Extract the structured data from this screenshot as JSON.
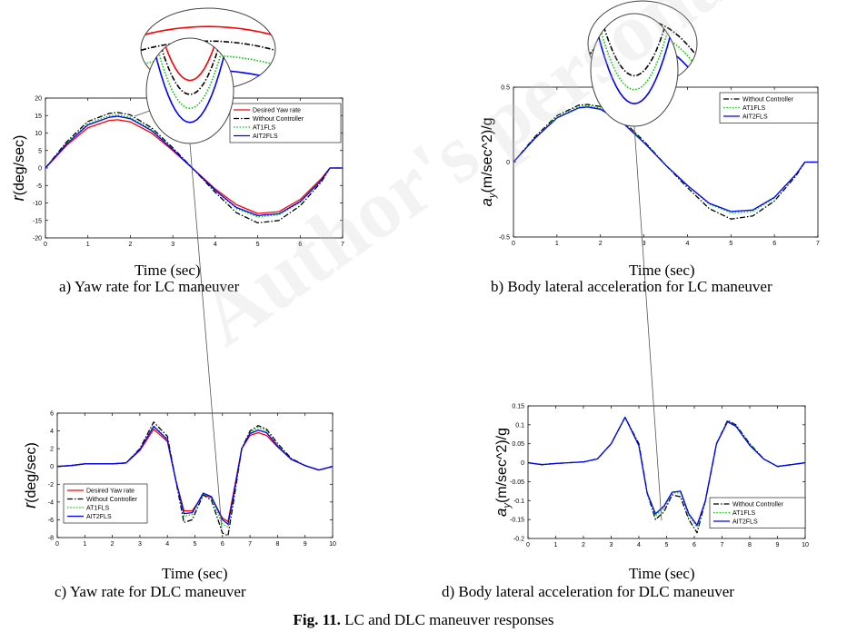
{
  "figure_caption": {
    "label": "Fig. 11.",
    "text": " LC and DLC maneuver responses"
  },
  "watermark": "Author's personal copy",
  "panels": {
    "a": {
      "caption": "a) Yaw rate for LC maneuver",
      "xlabel": "Time (sec)",
      "ylabel": "r(deg/sec)"
    },
    "b": {
      "caption": "b) Body lateral acceleration for LC maneuver",
      "xlabel": "Time (sec)",
      "ylabel": "a_y(m/sec^2)/g"
    },
    "c": {
      "caption": "c) Yaw rate for DLC maneuver",
      "xlabel": "Time (sec)",
      "ylabel": "r(deg/sec)"
    },
    "d": {
      "caption": "d) Body lateral acceleration for DLC maneuver",
      "xlabel": "Time (sec)",
      "ylabel": "a_y(m/sec^2)/g"
    }
  },
  "colors": {
    "desired": "#ff0000",
    "without": "#000000",
    "at1": "#00cc00",
    "ait2": "#0000ff"
  },
  "chart_data": [
    {
      "id": "a",
      "type": "line",
      "xlabel": "Time (sec)",
      "ylabel": "r(deg/sec)",
      "xlim": [
        0,
        7
      ],
      "ylim": [
        -20,
        20
      ],
      "xticks": [
        0,
        1,
        2,
        3,
        4,
        5,
        6,
        7
      ],
      "yticks": [
        20,
        15,
        10,
        5,
        0,
        -5,
        -10,
        -15,
        -20
      ],
      "legend": "top-right",
      "grid": false,
      "series": [
        {
          "name": "Desired Yaw rate",
          "color": "#ff0000",
          "style": "solid",
          "x": [
            0,
            0.5,
            1,
            1.5,
            1.7,
            2,
            2.5,
            3,
            3.5,
            4,
            4.5,
            5,
            5.5,
            6,
            6.5,
            6.7,
            7
          ],
          "y": [
            0,
            6.5,
            11.5,
            13.6,
            13.8,
            13.2,
            10,
            5,
            -0.5,
            -6,
            -10.5,
            -13,
            -12.5,
            -9,
            -3,
            0,
            0
          ]
        },
        {
          "name": "Without Controller",
          "color": "#000000",
          "style": "dashdot",
          "x": [
            0,
            0.5,
            1,
            1.5,
            1.7,
            2,
            2.5,
            3,
            3.5,
            4,
            4.5,
            5,
            5.5,
            6,
            6.5,
            6.7,
            7
          ],
          "y": [
            0,
            7.5,
            13.3,
            15.6,
            15.9,
            15.2,
            11.5,
            5.8,
            -0.5,
            -7,
            -12.8,
            -15.7,
            -15,
            -10.8,
            -4,
            0,
            0
          ]
        },
        {
          "name": "AT1FLS",
          "color": "#00cc00",
          "style": "dotted",
          "x": [
            0,
            0.5,
            1,
            1.5,
            1.7,
            2,
            2.5,
            3,
            3.5,
            4,
            4.5,
            5,
            5.5,
            6,
            6.5,
            6.7,
            7
          ],
          "y": [
            0,
            7.1,
            12.7,
            14.9,
            15.2,
            14.5,
            11,
            5.4,
            -0.5,
            -6.5,
            -11.6,
            -14,
            -13.4,
            -9.8,
            -3.6,
            0,
            0
          ]
        },
        {
          "name": "AIT2FLS",
          "color": "#0000ff",
          "style": "solid",
          "x": [
            0,
            0.5,
            1,
            1.5,
            1.7,
            2,
            2.5,
            3,
            3.5,
            4,
            4.5,
            5,
            5.5,
            6,
            6.5,
            6.7,
            7
          ],
          "y": [
            0,
            6.9,
            12.3,
            14.5,
            14.8,
            14.1,
            10.7,
            5.3,
            -0.5,
            -6.4,
            -11.3,
            -13.6,
            -13.1,
            -9.6,
            -3.5,
            0,
            0
          ]
        }
      ]
    },
    {
      "id": "b",
      "type": "line",
      "xlabel": "Time (sec)",
      "ylabel": "a_y(m/sec^2)/g",
      "xlim": [
        0,
        7
      ],
      "ylim": [
        -0.5,
        0.5
      ],
      "xticks": [
        0,
        1,
        2,
        3,
        4,
        5,
        6,
        7
      ],
      "yticks": [
        0.5,
        0,
        -0.5
      ],
      "legend": "top-right",
      "grid": false,
      "series": [
        {
          "name": "Without Controller",
          "color": "#000000",
          "style": "dashdot",
          "x": [
            0,
            0.5,
            1,
            1.5,
            1.7,
            2,
            2.5,
            3,
            3.5,
            4,
            4.5,
            5,
            5.5,
            6,
            6.5,
            6.7,
            7
          ],
          "y": [
            0,
            0.17,
            0.31,
            0.38,
            0.385,
            0.37,
            0.28,
            0.14,
            -0.02,
            -0.17,
            -0.31,
            -0.38,
            -0.36,
            -0.26,
            -0.09,
            0,
            0
          ]
        },
        {
          "name": "AT1FLS",
          "color": "#00cc00",
          "style": "dotted",
          "x": [
            0,
            0.5,
            1,
            1.5,
            1.7,
            2,
            2.5,
            3,
            3.5,
            4,
            4.5,
            5,
            5.5,
            6,
            6.5,
            6.7,
            7
          ],
          "y": [
            0,
            0.165,
            0.3,
            0.37,
            0.376,
            0.36,
            0.27,
            0.135,
            -0.02,
            -0.16,
            -0.28,
            -0.34,
            -0.33,
            -0.24,
            -0.08,
            0,
            0
          ]
        },
        {
          "name": "AIT2FLS",
          "color": "#0000ff",
          "style": "solid",
          "x": [
            0,
            0.5,
            1,
            1.5,
            1.7,
            2,
            2.5,
            3,
            3.5,
            4,
            4.5,
            5,
            5.5,
            6,
            6.5,
            6.7,
            7
          ],
          "y": [
            0,
            0.16,
            0.295,
            0.362,
            0.368,
            0.353,
            0.265,
            0.13,
            -0.02,
            -0.155,
            -0.275,
            -0.33,
            -0.32,
            -0.235,
            -0.08,
            0,
            0
          ]
        }
      ]
    },
    {
      "id": "c",
      "type": "line",
      "xlabel": "Time (sec)",
      "ylabel": "r(deg/sec)",
      "xlim": [
        0,
        10
      ],
      "ylim": [
        -8,
        6
      ],
      "xticks": [
        0,
        1,
        2,
        3,
        4,
        5,
        6,
        7,
        8,
        9,
        10
      ],
      "yticks": [
        6,
        4,
        2,
        0,
        -2,
        -4,
        -6,
        -8
      ],
      "legend": "bottom-left",
      "grid": false,
      "series": [
        {
          "name": "Desired Yaw rate",
          "color": "#ff0000",
          "style": "solid",
          "x": [
            0,
            0.5,
            1,
            2,
            2.5,
            3,
            3.5,
            4,
            4.3,
            4.6,
            4.9,
            5.3,
            5.6,
            6,
            6.2,
            6.4,
            6.7,
            7,
            7.3,
            7.6,
            8,
            8.5,
            9,
            9.5,
            10
          ],
          "y": [
            0,
            0.1,
            0.3,
            0.3,
            0.4,
            1.8,
            4.2,
            2.8,
            -1.5,
            -5,
            -5,
            -3.2,
            -3.5,
            -5.8,
            -6.2,
            -3,
            2,
            3.5,
            3.8,
            3.5,
            2.2,
            0.8,
            0.1,
            -0.4,
            0
          ]
        },
        {
          "name": "Without Controller",
          "color": "#000000",
          "style": "dashdot",
          "x": [
            0,
            0.5,
            1,
            2,
            2.5,
            3,
            3.5,
            4,
            4.3,
            4.6,
            4.9,
            5.3,
            5.6,
            6,
            6.2,
            6.4,
            6.7,
            7,
            7.3,
            7.6,
            8,
            8.5,
            9,
            9.5,
            10
          ],
          "y": [
            0,
            0.1,
            0.3,
            0.3,
            0.4,
            2,
            5,
            3.4,
            -1.5,
            -6.3,
            -6,
            -3.2,
            -3.8,
            -7.5,
            -7.8,
            -4,
            2,
            4,
            4.6,
            4.2,
            2.6,
            0.9,
            0.1,
            -0.4,
            0
          ]
        },
        {
          "name": "AT1FLS",
          "color": "#00cc00",
          "style": "dotted",
          "x": [
            0,
            0.5,
            1,
            2,
            2.5,
            3,
            3.5,
            4,
            4.3,
            4.6,
            4.9,
            5.3,
            5.6,
            6,
            6.2,
            6.4,
            6.7,
            7,
            7.3,
            7.6,
            8,
            8.5,
            9,
            9.5,
            10
          ],
          "y": [
            0,
            0.1,
            0.3,
            0.3,
            0.4,
            1.9,
            4.6,
            3.1,
            -1.5,
            -5.6,
            -5.4,
            -3.1,
            -3.6,
            -6.5,
            -6.8,
            -3.5,
            2,
            3.8,
            4.4,
            4,
            2.4,
            0.8,
            0.1,
            -0.4,
            0
          ]
        },
        {
          "name": "AIT2FLS",
          "color": "#0000ff",
          "style": "solid",
          "x": [
            0,
            0.5,
            1,
            2,
            2.5,
            3,
            3.5,
            4,
            4.3,
            4.6,
            4.9,
            5.3,
            5.6,
            6,
            6.2,
            6.4,
            6.7,
            7,
            7.3,
            7.6,
            8,
            8.5,
            9,
            9.5,
            10
          ],
          "y": [
            0,
            0.1,
            0.3,
            0.3,
            0.4,
            1.9,
            4.5,
            3,
            -1.5,
            -5.3,
            -5.2,
            -3,
            -3.4,
            -6,
            -6.5,
            -3.3,
            2,
            3.7,
            4.1,
            3.8,
            2.3,
            0.8,
            0.1,
            -0.4,
            0
          ]
        }
      ]
    },
    {
      "id": "d",
      "type": "line",
      "xlabel": "Time (sec)",
      "ylabel": "a_y(m/sec^2)/g",
      "xlim": [
        0,
        10
      ],
      "ylim": [
        -0.2,
        0.15
      ],
      "xticks": [
        0,
        1,
        2,
        3,
        4,
        5,
        6,
        7,
        8,
        9,
        10
      ],
      "yticks": [
        0.15,
        0.1,
        0.05,
        0,
        -0.05,
        -0.1,
        -0.15,
        -0.2
      ],
      "legend": "bottom-right",
      "grid": false,
      "series": [
        {
          "name": "Without Controller",
          "color": "#000000",
          "style": "dashdot",
          "x": [
            0,
            0.5,
            1,
            2,
            2.5,
            3,
            3.5,
            4,
            4.3,
            4.6,
            4.9,
            5.2,
            5.5,
            5.8,
            6.1,
            6.4,
            6.8,
            7.2,
            7.5,
            8,
            8.5,
            9,
            9.5,
            10
          ],
          "y": [
            0,
            -0.005,
            -0.002,
            0.002,
            0.01,
            0.05,
            0.12,
            0.05,
            -0.08,
            -0.15,
            -0.13,
            -0.085,
            -0.09,
            -0.15,
            -0.185,
            -0.1,
            0.05,
            0.112,
            0.1,
            0.05,
            0.01,
            -0.01,
            -0.005,
            0
          ]
        },
        {
          "name": "AT1FLS",
          "color": "#00cc00",
          "style": "dotted",
          "x": [
            0,
            0.5,
            1,
            2,
            2.5,
            3,
            3.5,
            4,
            4.3,
            4.6,
            4.9,
            5.2,
            5.5,
            5.8,
            6.1,
            6.4,
            6.8,
            7.2,
            7.5,
            8,
            8.5,
            9,
            9.5,
            10
          ],
          "y": [
            0,
            -0.005,
            -0.002,
            0.002,
            0.01,
            0.05,
            0.12,
            0.045,
            -0.08,
            -0.14,
            -0.12,
            -0.08,
            -0.08,
            -0.14,
            -0.17,
            -0.1,
            0.05,
            0.11,
            0.098,
            0.048,
            0.01,
            -0.01,
            -0.005,
            0
          ]
        },
        {
          "name": "AIT2FLS",
          "color": "#0000ff",
          "style": "solid",
          "x": [
            0,
            0.5,
            1,
            2,
            2.5,
            3,
            3.5,
            4,
            4.3,
            4.6,
            4.9,
            5.2,
            5.5,
            5.8,
            6.1,
            6.4,
            6.8,
            7.2,
            7.5,
            8,
            8.5,
            9,
            9.5,
            10
          ],
          "y": [
            0,
            -0.005,
            -0.002,
            0.002,
            0.01,
            0.05,
            0.12,
            0.045,
            -0.08,
            -0.135,
            -0.115,
            -0.078,
            -0.075,
            -0.135,
            -0.165,
            -0.1,
            0.05,
            0.108,
            0.096,
            0.046,
            0.01,
            -0.01,
            -0.005,
            0
          ]
        }
      ]
    }
  ]
}
